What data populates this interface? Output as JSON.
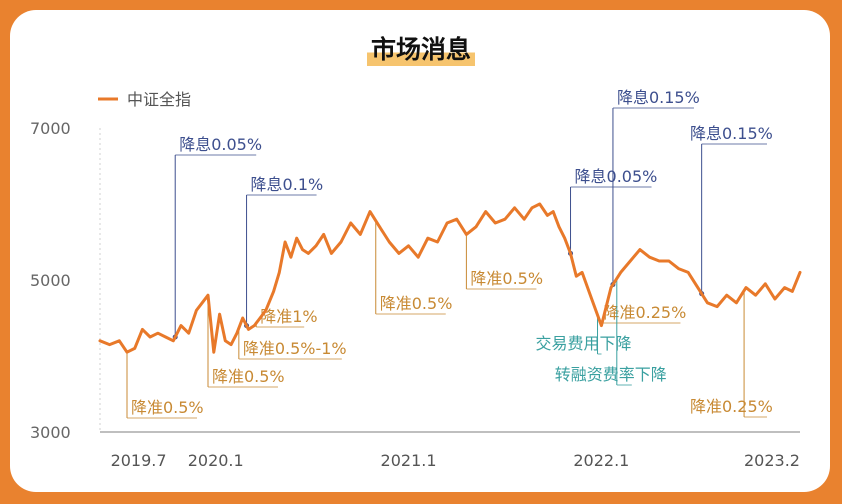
{
  "chart_data": {
    "type": "line",
    "title": "市场消息",
    "xlabel": "",
    "ylabel": "",
    "ylim": [
      3000,
      7000
    ],
    "yticks": [
      "3000",
      "5000",
      "7000"
    ],
    "xticks": [
      "2019.7",
      "2020.1",
      "2021.1",
      "2022.1",
      "2023.2"
    ],
    "grid": false,
    "legend": "top-left",
    "series": [
      {
        "name": "中证全指",
        "color": "#e8792a",
        "x": [
          2019.5,
          2019.55,
          2019.6,
          2019.64,
          2019.68,
          2019.72,
          2019.76,
          2019.8,
          2019.84,
          2019.88,
          2019.92,
          2019.96,
          2020.0,
          2020.03,
          2020.06,
          2020.09,
          2020.12,
          2020.15,
          2020.18,
          2020.21,
          2020.24,
          2020.27,
          2020.3,
          2020.33,
          2020.36,
          2020.4,
          2020.43,
          2020.46,
          2020.49,
          2020.52,
          2020.55,
          2020.58,
          2020.62,
          2020.66,
          2020.7,
          2020.75,
          2020.8,
          2020.85,
          2020.9,
          2020.95,
          2021.0,
          2021.05,
          2021.1,
          2021.15,
          2021.2,
          2021.25,
          2021.3,
          2021.35,
          2021.4,
          2021.45,
          2021.5,
          2021.55,
          2021.6,
          2021.65,
          2021.7,
          2021.74,
          2021.78,
          2021.82,
          2021.85,
          2021.88,
          2021.91,
          2021.94,
          2021.97,
          2022.0,
          2022.05,
          2022.1,
          2022.15,
          2022.2,
          2022.25,
          2022.3,
          2022.35,
          2022.4,
          2022.45,
          2022.5,
          2022.55,
          2022.6,
          2022.65,
          2022.7,
          2022.75,
          2022.8,
          2022.85,
          2022.9,
          2022.95,
          2023.0,
          2023.05,
          2023.09,
          2023.13
        ],
        "values": [
          4200,
          4150,
          4200,
          4050,
          4100,
          4350,
          4250,
          4300,
          4250,
          4200,
          4400,
          4300,
          4600,
          4700,
          4800,
          4050,
          4550,
          4200,
          4150,
          4300,
          4500,
          4350,
          4400,
          4500,
          4600,
          4850,
          5100,
          5500,
          5300,
          5550,
          5400,
          5350,
          5450,
          5600,
          5350,
          5500,
          5750,
          5600,
          5900,
          5700,
          5500,
          5350,
          5450,
          5300,
          5550,
          5500,
          5750,
          5800,
          5600,
          5700,
          5900,
          5750,
          5800,
          5950,
          5800,
          5950,
          6000,
          5850,
          5900,
          5700,
          5550,
          5350,
          5050,
          5100,
          4750,
          4400,
          4900,
          5100,
          5250,
          5400,
          5300,
          5250,
          5250,
          5150,
          5100,
          4900,
          4700,
          4650,
          4800,
          4700,
          4900,
          4800,
          4950,
          4750,
          4900,
          4850,
          5100
        ]
      }
    ],
    "annotations": [
      {
        "label": "降准0.5%",
        "x": 2019.64,
        "type": "rrr"
      },
      {
        "label": "降准0.5%",
        "x": 2020.06,
        "type": "rrr"
      },
      {
        "label": "降准0.5%-1%",
        "x": 2020.22,
        "type": "rrr"
      },
      {
        "label": "降准1%",
        "x": 2020.31,
        "type": "rrr"
      },
      {
        "label": "降准0.5%",
        "x": 2020.93,
        "type": "rrr"
      },
      {
        "label": "降准0.5%",
        "x": 2021.4,
        "type": "rrr"
      },
      {
        "label": "降准0.25%",
        "x": 2022.09,
        "type": "rrr"
      },
      {
        "label": "降准0.25%",
        "x": 2022.84,
        "type": "rrr"
      },
      {
        "label": "降息0.05%",
        "x": 2019.89,
        "type": "rate"
      },
      {
        "label": "降息0.1%",
        "x": 2020.26,
        "type": "rate"
      },
      {
        "label": "降息0.05%",
        "x": 2021.94,
        "type": "rate"
      },
      {
        "label": "降息0.15%",
        "x": 2022.16,
        "type": "rate"
      },
      {
        "label": "降息0.15%",
        "x": 2022.62,
        "type": "rate"
      },
      {
        "label": "交易费用下降",
        "x": 2022.08,
        "type": "policy"
      },
      {
        "label": "转融资费率下降",
        "x": 2022.18,
        "type": "policy"
      }
    ]
  }
}
